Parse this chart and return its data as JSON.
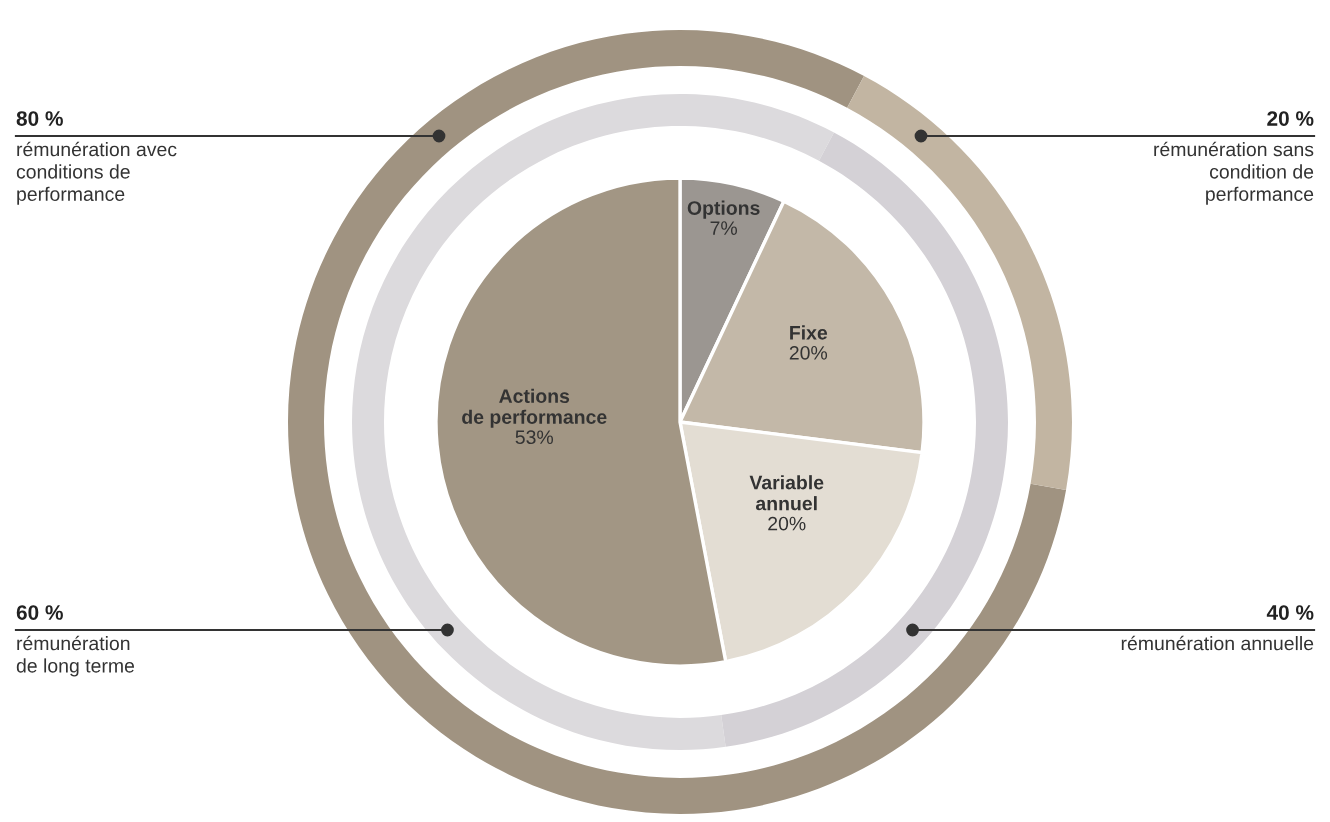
{
  "chart_data": {
    "type": "pie",
    "categories": [
      "Options",
      "Fixe",
      "Variable\nannuel",
      "Actions\nde performance"
    ],
    "values": [
      7,
      20,
      20,
      53
    ],
    "colors": [
      "#9b9691",
      "#c3b8a8",
      "#e3ddd3",
      "#a29684"
    ],
    "value_labels": [
      "7%",
      "20%",
      "20%",
      "53%"
    ],
    "series": [
      {
        "type": "donut",
        "values": [
          60,
          40,
          null,
          null
        ],
        "colors": [
          "#dcdadd",
          "#d4d1d6",
          null,
          null
        ]
      },
      {
        "type": "donut",
        "values": [
          80,
          20,
          null,
          null
        ],
        "colors": [
          "#a09381",
          "#c2b5a2",
          null,
          null
        ]
      }
    ],
    "annotations": [
      "60 %\nrémunération\nde long terme",
      "40 %\nrémunération annuelle",
      "80 %\nrémunération avec\nconditions de\nperformance",
      "20 %\nrémunération sans\ncondition de\nperformance"
    ]
  }
}
